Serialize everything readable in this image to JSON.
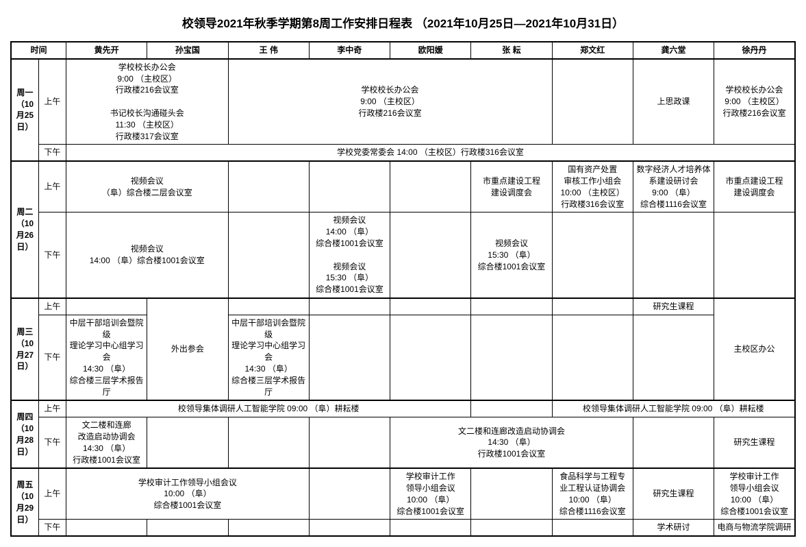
{
  "title": "校领导2021年秋季学期第8周工作安排日程表 （2021年10月25日—2021年10月31日）",
  "headers": {
    "time": "时间",
    "p1": "黄先开",
    "p2": "孙宝国",
    "p3": "王  伟",
    "p4": "李中奇",
    "p5": "欧阳媛",
    "p6": "张  耘",
    "p7": "郑文红",
    "p8": "龚六堂",
    "p9": "徐丹丹"
  },
  "periods": {
    "am": "上午",
    "pm": "下午"
  },
  "days": {
    "mon": "周一\n（10月25日）",
    "tue": "周二\n（10月26日）",
    "wed": "周三\n（10月27日）",
    "thu": "周四\n（10月28日）",
    "fri": "周五\n（10月29日）"
  },
  "cells": {
    "mon_am_c1": "学校校长办公会\n9:00 （主校区）\n行政楼216会议室\n\n书记校长沟通碰头会\n11:30 （主校区）\n行政楼317会议室",
    "mon_am_c2": "学校校长办公会\n9:00 （主校区）\n行政楼216会议室",
    "mon_am_c3": "上思政课",
    "mon_am_c4": "学校校长办公会\n9:00 （主校区）\n行政楼216会议室",
    "mon_pm_all": "学校党委常委会 14:00 （主校区）行政楼316会议室",
    "tue_am_c1": "视频会议\n（阜）综合楼二层会议室",
    "tue_am_c2": "市重点建设工程\n建设调度会",
    "tue_am_c3": "国有资产处置\n审核工作小组会\n10:00 （主校区）\n行政楼316会议室",
    "tue_am_c4": "数字经济人才培养体\n系建设研讨会\n9:00 （阜）\n综合楼1116会议室",
    "tue_am_c5": "市重点建设工程\n建设调度会",
    "tue_pm_c1": "视频会议\n14:00 （阜）综合楼1001会议室",
    "tue_pm_c2": "视频会议\n14:00 （阜）\n综合楼1001会议室\n\n视频会议\n15:30 （阜）\n综合楼1001会议室",
    "tue_pm_c3": "视频会议\n15:30 （阜）\n综合楼1001会议室",
    "wed_am_c1": "研究生课程",
    "wed_pm_c1": "中层干部培训会暨院级\n理论学习中心组学习会\n14:30 （阜）\n综合楼三层学术报告厅",
    "wed_pm_c2": "外出参会",
    "wed_pm_c3": "中层干部培训会暨院级\n理论学习中心组学习会\n14:30 （阜）\n综合楼三层学术报告厅",
    "wed_all_c4": "主校区办公",
    "thu_am_c1": "校领导集体调研人工智能学院 09:00 （阜）耕耘楼",
    "thu_am_c2": "校领导集体调研人工智能学院 09:00 （阜）耕耘楼",
    "thu_pm_c1": "文二楼和连廊\n改造启动协调会\n14:30 （阜）\n行政楼1001会议室",
    "thu_pm_c2": "文二楼和连廊改造启动协调会\n14:30 （阜）\n行政楼1001会议室",
    "thu_pm_c3": "研究生课程",
    "fri_am_c1": "学校审计工作领导小组会议\n10:00 （阜）\n综合楼1001会议室",
    "fri_am_c2": "学校审计工作\n领导小组会议\n10:00 （阜）\n综合楼1001会议室",
    "fri_am_c3": "食品科学与工程专\n业工程认证协调会\n10:00 （阜）\n综合楼1116会议室",
    "fri_am_c4": "研究生课程",
    "fri_am_c5": "学校审计工作\n领导小组会议\n10:00 （阜）\n综合楼1001会议室",
    "fri_pm_c1": "学术研讨",
    "fri_pm_c2": "电商与物流学院调研"
  }
}
